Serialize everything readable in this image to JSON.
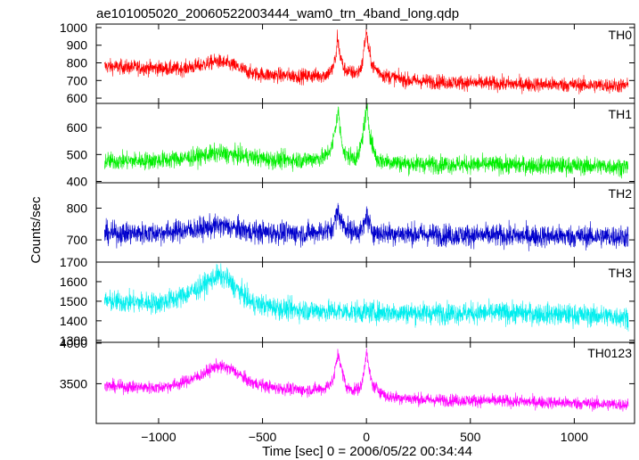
{
  "chart_data": {
    "type": "line",
    "title": "ae101005020_20060522003444_wam0_trn_4band_long.qdp",
    "xlabel": "Time [sec] 0 = 2006/05/22 00:34:44",
    "ylabel": "Counts/sec",
    "xlim": [
      -1300,
      1290
    ],
    "x_ticks": [
      -1000,
      -500,
      0,
      500,
      1000
    ],
    "x_tick_labels": [
      "−1000",
      "−500",
      "0",
      "500",
      "1000"
    ],
    "data_x_range": [
      -1260,
      1260
    ],
    "panels": [
      {
        "name": "TH0",
        "color": "#ff0000",
        "ylim": [
          570,
          1020
        ],
        "y_ticks": [
          600,
          700,
          800,
          900,
          1000
        ],
        "y_tick_labels": [
          "600",
          "700",
          "800",
          "900",
          "1000"
        ],
        "keypoints": [
          [
            -1260,
            780
          ],
          [
            -1000,
            770
          ],
          [
            -900,
            765
          ],
          [
            -800,
            785
          ],
          [
            -720,
            810
          ],
          [
            -650,
            790
          ],
          [
            -550,
            740
          ],
          [
            -450,
            730
          ],
          [
            -300,
            725
          ],
          [
            -200,
            730
          ],
          [
            -165,
            760
          ],
          [
            -145,
            840
          ],
          [
            -140,
            960
          ],
          [
            -130,
            860
          ],
          [
            -110,
            770
          ],
          [
            -80,
            745
          ],
          [
            -40,
            745
          ],
          [
            -20,
            790
          ],
          [
            -10,
            900
          ],
          [
            0,
            975
          ],
          [
            10,
            880
          ],
          [
            30,
            780
          ],
          [
            80,
            730
          ],
          [
            200,
            700
          ],
          [
            400,
            690
          ],
          [
            700,
            680
          ],
          [
            1000,
            675
          ],
          [
            1260,
            670
          ]
        ],
        "spread": 38
      },
      {
        "name": "TH1",
        "color": "#00ee00",
        "ylim": [
          395,
          690
        ],
        "y_ticks": [
          400,
          500,
          600
        ],
        "y_tick_labels": [
          "400",
          "500",
          "600"
        ],
        "keypoints": [
          [
            -1260,
            475
          ],
          [
            -1000,
            478
          ],
          [
            -850,
            488
          ],
          [
            -720,
            505
          ],
          [
            -600,
            495
          ],
          [
            -450,
            480
          ],
          [
            -300,
            480
          ],
          [
            -200,
            490
          ],
          [
            -165,
            530
          ],
          [
            -145,
            620
          ],
          [
            -135,
            660
          ],
          [
            -125,
            580
          ],
          [
            -105,
            500
          ],
          [
            -70,
            490
          ],
          [
            -40,
            490
          ],
          [
            -20,
            560
          ],
          [
            -5,
            640
          ],
          [
            5,
            660
          ],
          [
            20,
            560
          ],
          [
            50,
            480
          ],
          [
            200,
            465
          ],
          [
            600,
            462
          ],
          [
            1000,
            458
          ],
          [
            1260,
            455
          ]
        ],
        "spread": 30
      },
      {
        "name": "TH2",
        "color": "#0000cc",
        "ylim": [
          630,
          880
        ],
        "y_ticks": [
          700,
          800
        ],
        "y_tick_labels": [
          "700",
          "800"
        ],
        "keypoints": [
          [
            -1260,
            720
          ],
          [
            -1000,
            722
          ],
          [
            -800,
            735
          ],
          [
            -700,
            745
          ],
          [
            -550,
            725
          ],
          [
            -300,
            720
          ],
          [
            -170,
            730
          ],
          [
            -145,
            775
          ],
          [
            -135,
            790
          ],
          [
            -120,
            755
          ],
          [
            -80,
            728
          ],
          [
            -20,
            728
          ],
          [
            -5,
            760
          ],
          [
            0,
            790
          ],
          [
            10,
            750
          ],
          [
            40,
            722
          ],
          [
            400,
            715
          ],
          [
            800,
            712
          ],
          [
            1260,
            710
          ]
        ],
        "spread": 32
      },
      {
        "name": "TH3",
        "color": "#00eeee",
        "ylim": [
          1290,
          1700
        ],
        "y_ticks": [
          1300,
          1400,
          1500,
          1600,
          1700
        ],
        "y_tick_labels": [
          "1300",
          "1400",
          "1500",
          "1600",
          "1700"
        ],
        "keypoints": [
          [
            -1260,
            1500
          ],
          [
            -1000,
            1490
          ],
          [
            -900,
            1520
          ],
          [
            -800,
            1570
          ],
          [
            -720,
            1630
          ],
          [
            -680,
            1620
          ],
          [
            -620,
            1560
          ],
          [
            -550,
            1490
          ],
          [
            -400,
            1460
          ],
          [
            -200,
            1450
          ],
          [
            0,
            1445
          ],
          [
            300,
            1440
          ],
          [
            700,
            1440
          ],
          [
            1000,
            1430
          ],
          [
            1260,
            1420
          ]
        ],
        "spread": 50
      },
      {
        "name": "TH0123",
        "color": "#ff00ff",
        "ylim": [
          3010,
          4010
        ],
        "y_ticks": [
          3500,
          4000
        ],
        "y_tick_labels": [
          "3500",
          "4000"
        ],
        "keypoints": [
          [
            -1260,
            3470
          ],
          [
            -1000,
            3450
          ],
          [
            -900,
            3500
          ],
          [
            -800,
            3600
          ],
          [
            -720,
            3720
          ],
          [
            -650,
            3680
          ],
          [
            -560,
            3520
          ],
          [
            -450,
            3450
          ],
          [
            -300,
            3420
          ],
          [
            -200,
            3440
          ],
          [
            -160,
            3540
          ],
          [
            -145,
            3760
          ],
          [
            -135,
            3880
          ],
          [
            -120,
            3680
          ],
          [
            -95,
            3450
          ],
          [
            -60,
            3420
          ],
          [
            -25,
            3460
          ],
          [
            -10,
            3700
          ],
          [
            0,
            3900
          ],
          [
            10,
            3700
          ],
          [
            30,
            3480
          ],
          [
            100,
            3340
          ],
          [
            300,
            3300
          ],
          [
            600,
            3290
          ],
          [
            1000,
            3260
          ],
          [
            1260,
            3240
          ]
        ],
        "spread": 70
      }
    ]
  }
}
